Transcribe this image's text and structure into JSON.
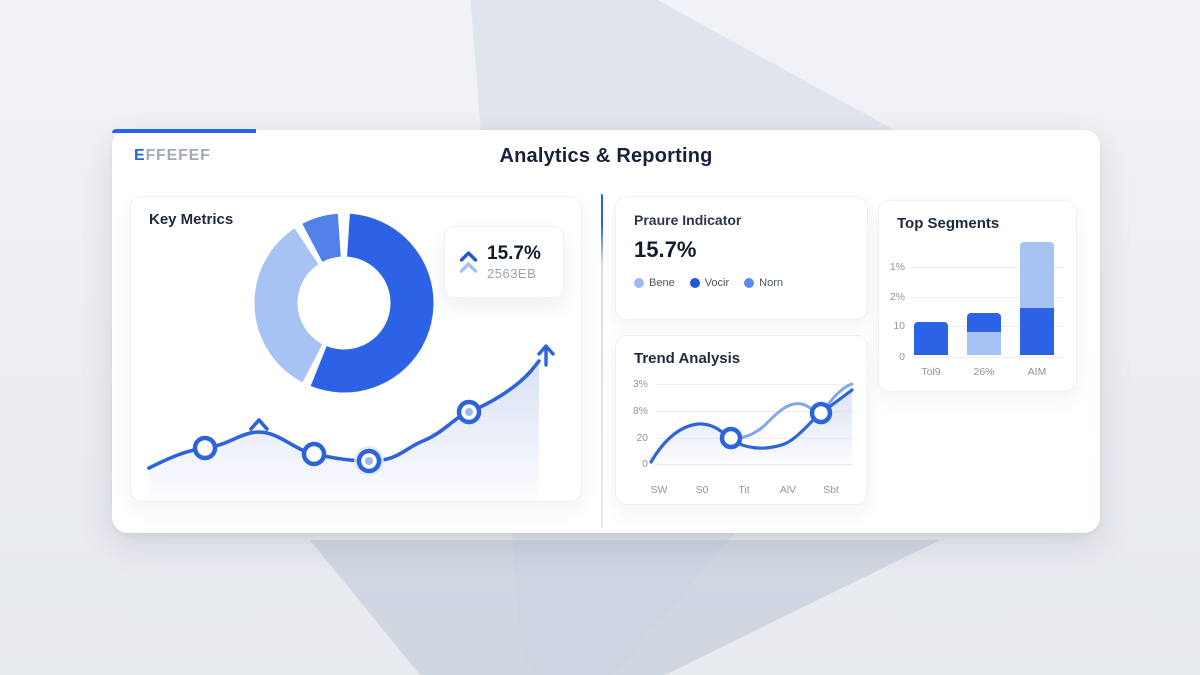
{
  "colors": {
    "primary": "#2c63e6",
    "medium_blue": "#5181e9",
    "light_blue": "#a6c3f3",
    "line_blue": "#2d63db",
    "light_line": "#7fa6ee"
  },
  "brand": {
    "accent": "E",
    "rest": "FFEFEF"
  },
  "header": {
    "title": "Analytics & Reporting"
  },
  "key_metrics": {
    "title": "Key Metrics",
    "stat": {
      "value": "15.7%",
      "sub": "2563EB"
    },
    "donut": {
      "gap_pct": 1.6,
      "slices": [
        {
          "name": "primary",
          "color": "#2c63e6",
          "pct": 55
        },
        {
          "name": "light",
          "color": "#a6c3f3",
          "pct": 33
        },
        {
          "name": "medium",
          "color": "#5181e9",
          "pct": 6.6
        }
      ]
    },
    "chart_data": {
      "type": "line",
      "note": "decorative trend curve rising to arrow",
      "markers": 4
    }
  },
  "pressure": {
    "title": "Praure Indicator",
    "value": "15.7%",
    "legend": [
      {
        "label": "Bene",
        "color": "#9db9ef"
      },
      {
        "label": "Vocir",
        "color": "#2356d9"
      },
      {
        "label": "Norn",
        "color": "#5b8bf0"
      }
    ]
  },
  "trend": {
    "title": "Trend Analysis",
    "chart_data": {
      "type": "line",
      "y_ticks": [
        "3%",
        "8%",
        "20",
        "0"
      ],
      "x_ticks": [
        "SW",
        "S0",
        "Tit",
        "AlV",
        "Sbt"
      ],
      "series": [
        {
          "name": "dark",
          "color": "#2d63db"
        },
        {
          "name": "light",
          "color": "#7fa6ee"
        }
      ]
    }
  },
  "segments": {
    "title": "Top Segments",
    "chart_data": {
      "type": "bar",
      "y_ticks": [
        "1%",
        "2%",
        "10",
        "0"
      ],
      "x_ticks": [
        "Tol9",
        "26%",
        "AIM"
      ],
      "bars": [
        {
          "label": "Tol9",
          "stacks": [
            {
              "color": "#2c63e6",
              "pct": 29
            }
          ]
        },
        {
          "label": "26%",
          "stacks": [
            {
              "color": "#a6c3f3",
              "pct": 20
            },
            {
              "color": "#2c63e6",
              "pct": 17
            }
          ]
        },
        {
          "label": "AIM",
          "stacks": [
            {
              "color": "#2c63e6",
              "pct": 42
            },
            {
              "color": "#a6c3f3",
              "pct": 58
            }
          ]
        }
      ]
    }
  }
}
